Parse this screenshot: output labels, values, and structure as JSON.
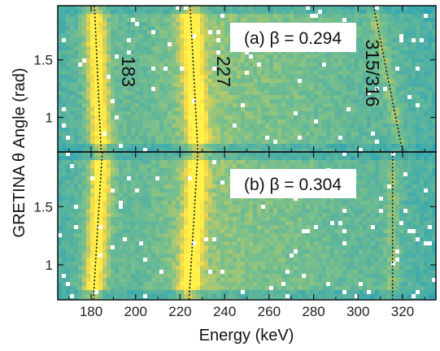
{
  "chart_data": [
    {
      "type": "heatmap",
      "panel_label": "(a) β = 0.294",
      "xlabel": "Energy (keV)",
      "ylabel": "GRETINA θ Angle (rad)",
      "xlim": [
        165,
        335
      ],
      "ylim": [
        0.7,
        1.97
      ],
      "xticks": [
        180,
        200,
        220,
        240,
        260,
        280,
        300,
        320
      ],
      "yticks": [
        1.0,
        1.5
      ],
      "ytick_labels": [
        "1",
        "1.5"
      ],
      "peaks": [
        {
          "label": "183",
          "energy_at_min_theta": 184.5,
          "energy_at_max_theta": 181.5
        },
        {
          "label": "227",
          "energy_at_min_theta": 228.0,
          "energy_at_max_theta": 224.5
        },
        {
          "label": "315/316",
          "energy_at_min_theta": 320.0,
          "energy_at_max_theta": 307.0
        }
      ]
    },
    {
      "type": "heatmap",
      "panel_label": "(b) β = 0.304",
      "xlabel": "Energy (keV)",
      "ylabel": "GRETINA θ Angle (rad)",
      "xlim": [
        165,
        335
      ],
      "ylim": [
        0.7,
        1.97
      ],
      "xticks": [
        180,
        200,
        220,
        240,
        260,
        280,
        300,
        320
      ],
      "yticks": [
        1.0,
        1.5
      ],
      "ytick_labels": [
        "1",
        "1.5"
      ],
      "peaks": [
        {
          "label": "",
          "energy_at_min_theta": 181.0,
          "energy_at_max_theta": 185.0
        },
        {
          "label": "",
          "energy_at_min_theta": 224.0,
          "energy_at_max_theta": 228.0
        },
        {
          "label": "",
          "energy_at_min_theta": 315.5,
          "energy_at_max_theta": 315.5
        }
      ]
    }
  ],
  "colors": {
    "background_low": "#2aa3b8",
    "mid": "#7cc08a",
    "high": "#f2d54a",
    "peak": "#fff04a",
    "dotted_line": "#111111"
  }
}
